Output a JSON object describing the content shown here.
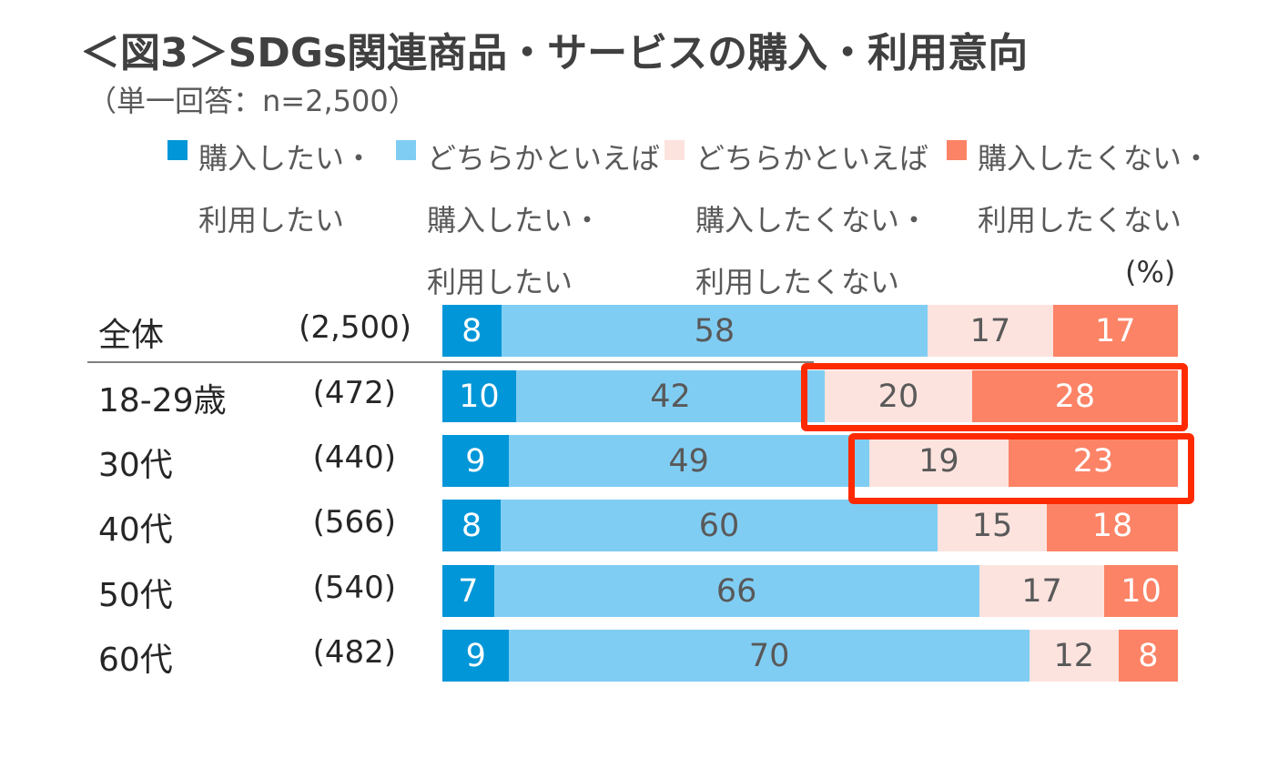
{
  "chart_data": {
    "type": "bar",
    "orientation": "horizontal-stacked-100",
    "title": "＜図3＞SDGs関連商品・サービスの購入・利用意向",
    "subtitle": "（単一回答：n=2,500）",
    "unit_label": "(%)",
    "series": [
      {
        "name": "購入したい・\n利用したい",
        "color": "#0096d8",
        "label_color": "#ffffff"
      },
      {
        "name": "どちらかといえば\n購入したい・\n利用したい",
        "color": "#80cdf3",
        "label_color": "#595959"
      },
      {
        "name": "どちらかといえば\n購入したくない・\n利用したくない",
        "color": "#fde3de",
        "label_color": "#595959"
      },
      {
        "name": "購入したくない・\n利用したくない",
        "color": "#fc8366",
        "label_color": "#ffffff"
      }
    ],
    "categories": [
      {
        "label": "全体",
        "n": "(2,500)",
        "values": [
          8,
          58,
          17,
          17
        ]
      },
      {
        "label": "18-29歳",
        "n": "(472)",
        "values": [
          10,
          42,
          20,
          28
        ]
      },
      {
        "label": "30代",
        "n": "(440)",
        "values": [
          9,
          49,
          19,
          23
        ]
      },
      {
        "label": "40代",
        "n": "(566)",
        "values": [
          8,
          60,
          15,
          18
        ]
      },
      {
        "label": "50代",
        "n": "(540)",
        "values": [
          7,
          66,
          17,
          10
        ]
      },
      {
        "label": "60代",
        "n": "(482)",
        "values": [
          9,
          70,
          12,
          8
        ]
      }
    ],
    "highlight": {
      "rows": [
        "18-29歳",
        "30代"
      ],
      "series": [
        2,
        3
      ],
      "color": "#ff2a00"
    }
  }
}
